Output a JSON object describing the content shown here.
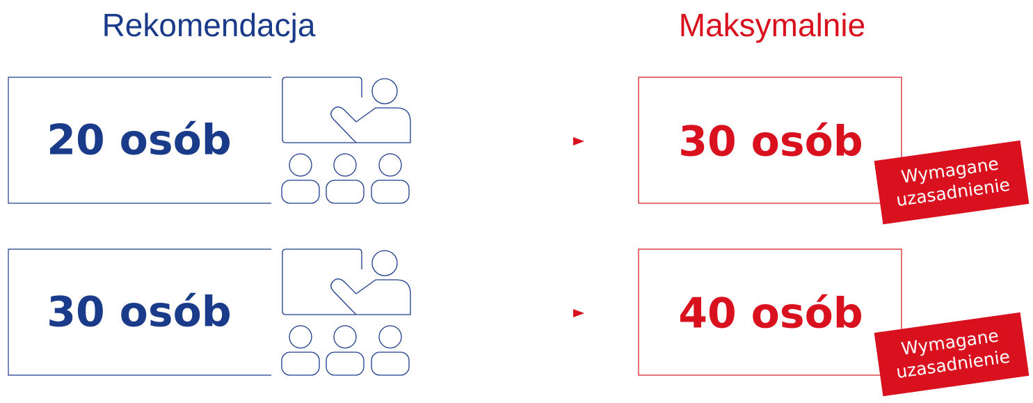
{
  "header": {
    "left": "Rekomendacja",
    "right": "Maksymalnie"
  },
  "rows": [
    {
      "recommended": "20 osób",
      "maximum": "30 osób",
      "badge": [
        "Wymagane",
        "uzasadnienie"
      ]
    },
    {
      "recommended": "30 osób",
      "maximum": "40 osób",
      "badge": [
        "Wymagane",
        "uzasadnienie"
      ]
    }
  ]
}
